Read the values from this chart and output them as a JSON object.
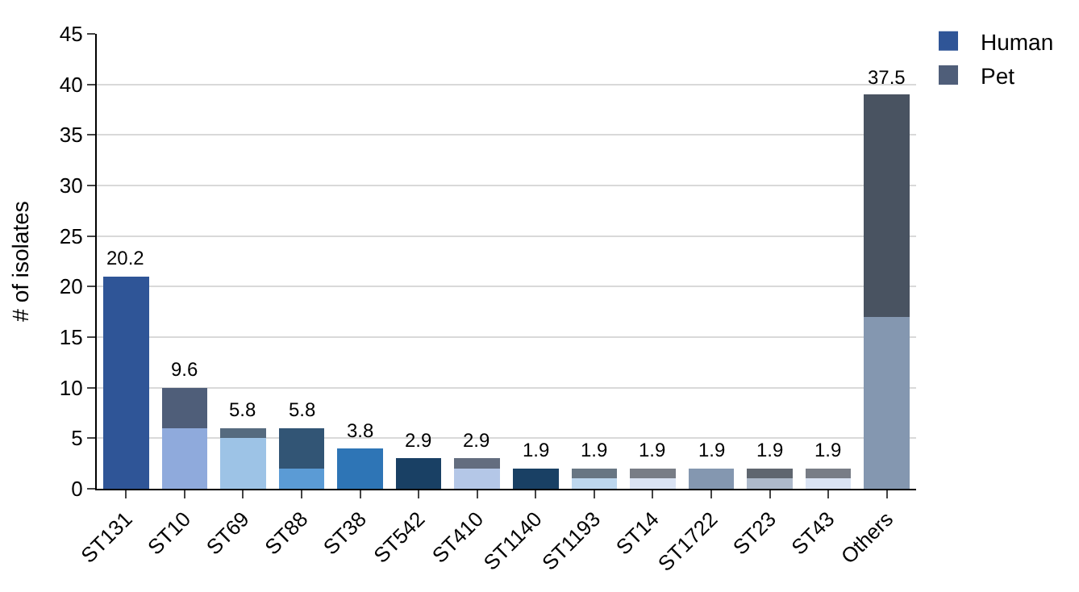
{
  "chart_data": {
    "type": "bar",
    "stacked": true,
    "ylabel": "# of isolates",
    "categories": [
      "ST131",
      "ST10",
      "ST69",
      "ST88",
      "ST38",
      "ST542",
      "ST410",
      "ST1140",
      "ST1193",
      "ST14",
      "ST1722",
      "ST23",
      "ST43",
      "Others"
    ],
    "series": [
      {
        "name": "Human",
        "colors": [
          "#2f5597",
          "#8faadc",
          "#9dc3e6",
          "#5b9bd5",
          "#2e75b6",
          "#2e75b6",
          "#b4c7e7",
          "#2e75b6",
          "#bdd7ee",
          "#dae3f3",
          "#8497b0",
          "#adb9ca",
          "#dae3f3",
          "#8497b0"
        ],
        "values": [
          21,
          6,
          5,
          2,
          4,
          0,
          2,
          0,
          1,
          1,
          2,
          1,
          1,
          17
        ]
      },
      {
        "name": "Pet",
        "colors": [
          "#4f5e79",
          "#4f5e79",
          "#566b7f",
          "#325575",
          "#194064",
          "#194064",
          "#636d7f",
          "#194064",
          "#687683",
          "#787d86",
          "#495361",
          "#5f666f",
          "#787d86",
          "#495361"
        ],
        "values": [
          0,
          4,
          1,
          4,
          0,
          3,
          1,
          2,
          1,
          1,
          0,
          1,
          1,
          22
        ]
      }
    ],
    "annotations": [
      {
        "text": "20.2",
        "x": "ST131",
        "y": 21
      },
      {
        "text": "9.6",
        "x": "ST10",
        "y": 10
      },
      {
        "text": "5.8",
        "x": "ST69",
        "y": 6
      },
      {
        "text": "5.8",
        "x": "ST88",
        "y": 6
      },
      {
        "text": "3.8",
        "x": "ST38",
        "y": 4
      },
      {
        "text": "2.9",
        "x": "ST542",
        "y": 3
      },
      {
        "text": "2.9",
        "x": "ST410",
        "y": 3
      },
      {
        "text": "1.9",
        "x": "ST1140",
        "y": 2
      },
      {
        "text": "1.9",
        "x": "ST1193",
        "y": 2
      },
      {
        "text": "1.9",
        "x": "ST14",
        "y": 2
      },
      {
        "text": "1.9",
        "x": "ST1722",
        "y": 2
      },
      {
        "text": "1.9",
        "x": "ST23",
        "y": 2
      },
      {
        "text": "1.9",
        "x": "ST43",
        "y": 2
      },
      {
        "text": "37.5",
        "x": "Others",
        "y": 39
      }
    ],
    "ylim": [
      0,
      45
    ],
    "yticks": [
      0,
      5,
      10,
      15,
      20,
      25,
      30,
      35,
      40,
      45
    ],
    "grid": "y",
    "legend": "top right"
  }
}
